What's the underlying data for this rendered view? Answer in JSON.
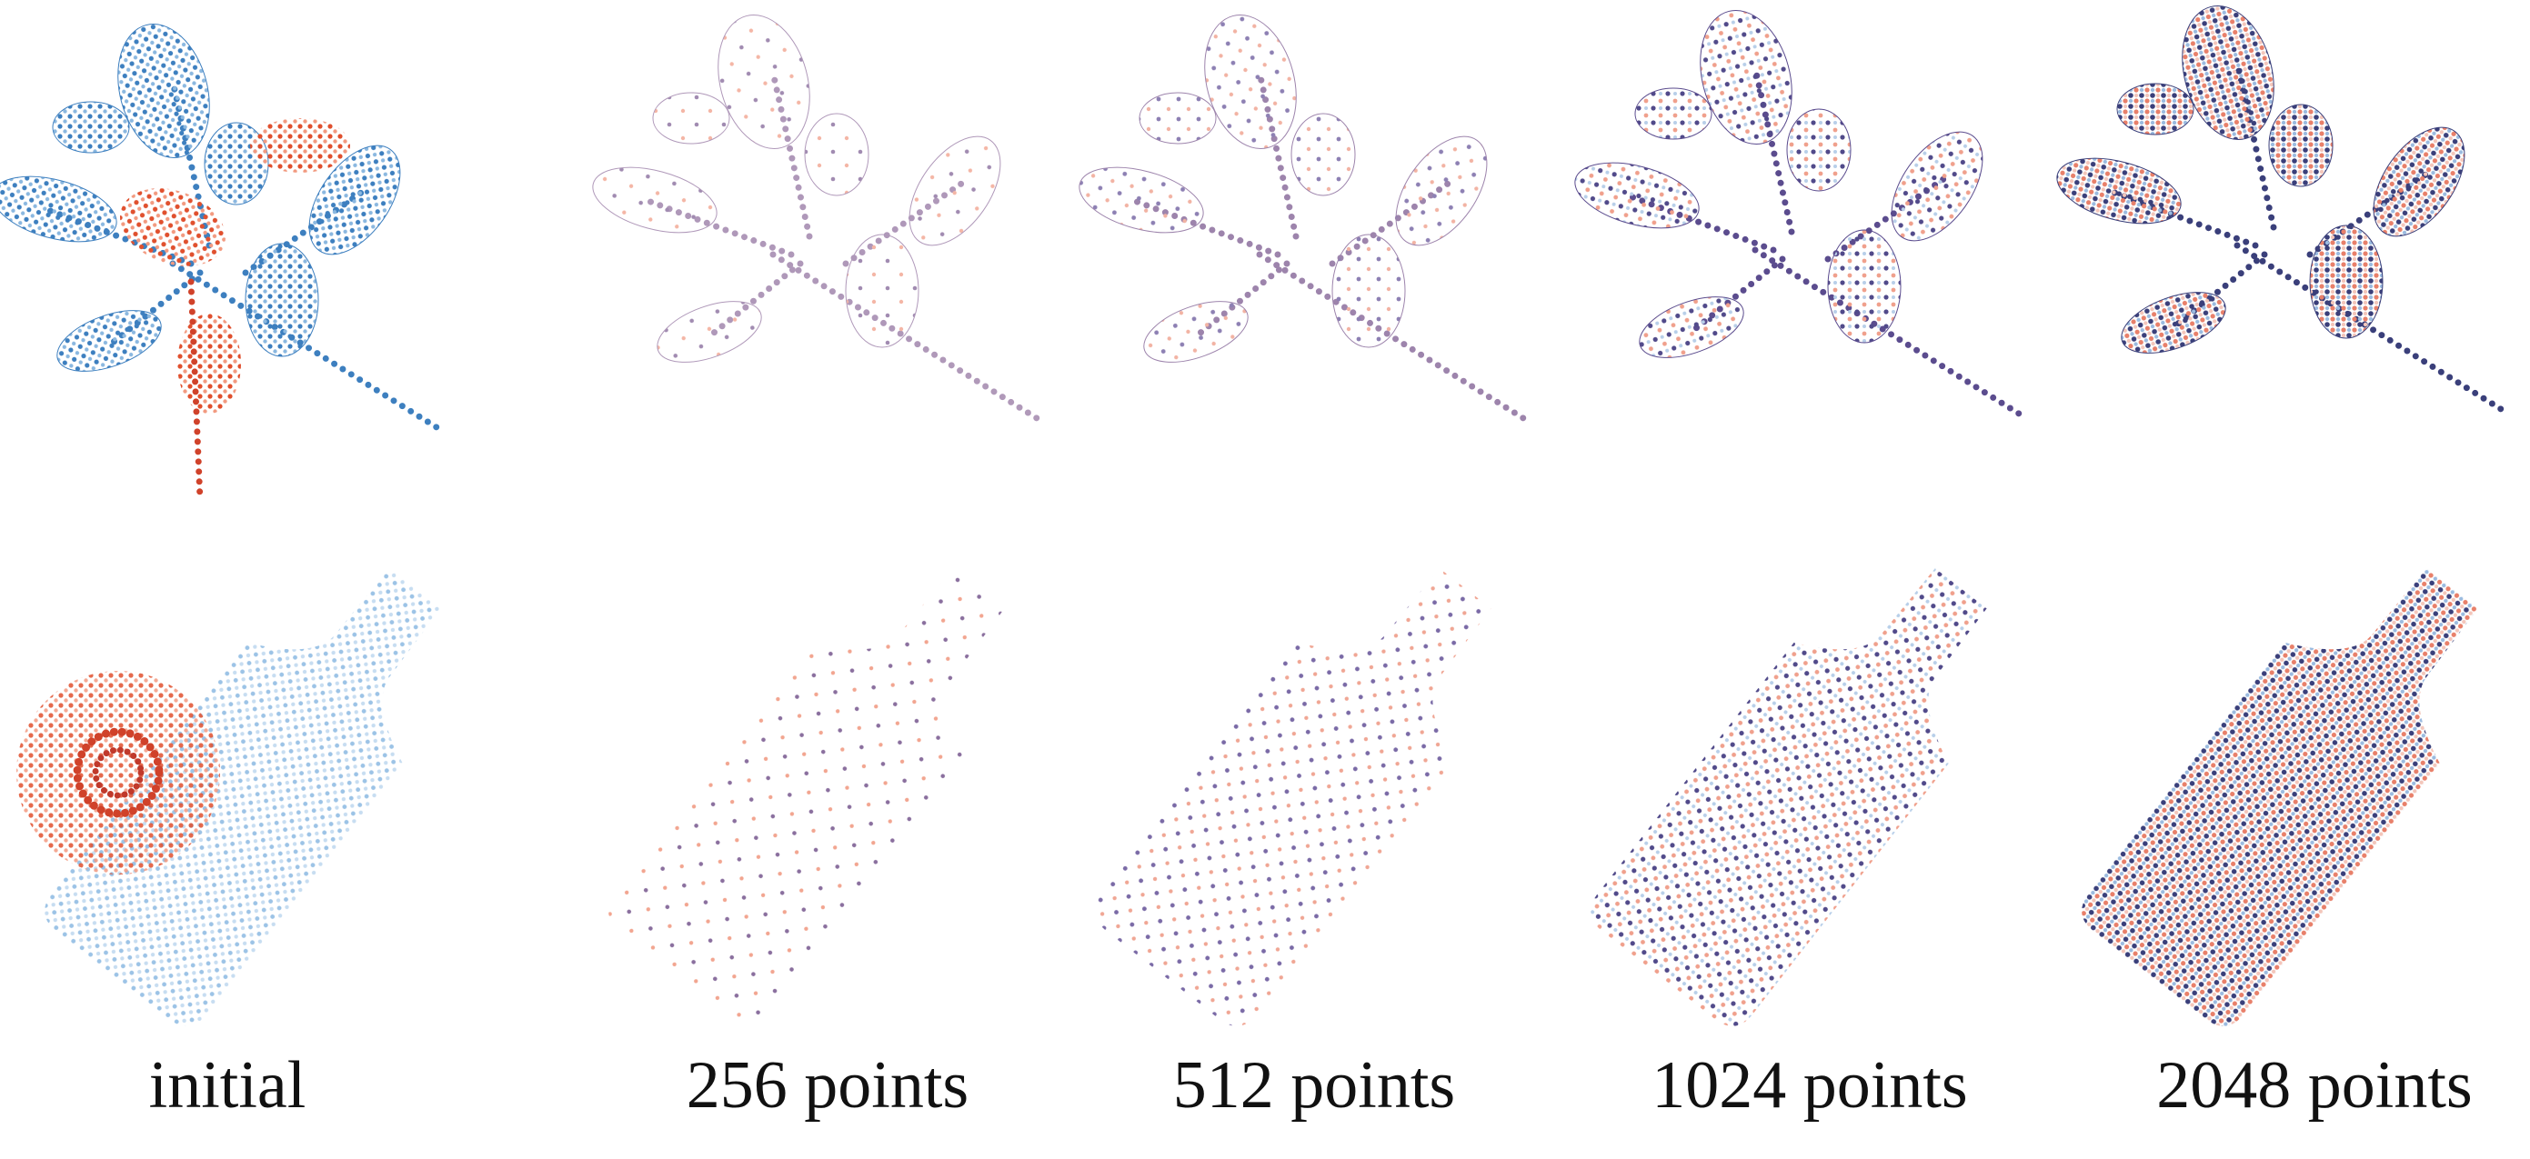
{
  "captions": [
    "initial",
    "256 points",
    "512 points",
    "1024 points",
    "2048 points"
  ]
}
